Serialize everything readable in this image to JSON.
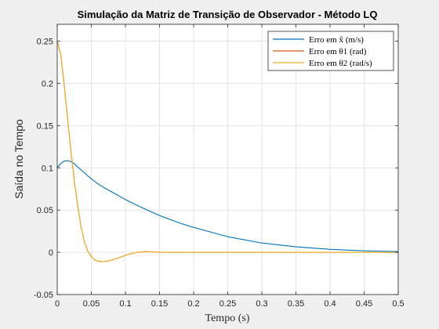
{
  "chart_data": {
    "type": "line",
    "title": "Simulação da Matriz de Transição de Observador - Método LQ",
    "xlabel": "Tempo (s)",
    "ylabel": "Saída no Tempo",
    "xlim": [
      0,
      0.5
    ],
    "ylim": [
      -0.05,
      0.27
    ],
    "xticks": [
      0,
      0.05,
      0.1,
      0.15,
      0.2,
      0.25,
      0.3,
      0.35,
      0.4,
      0.45,
      0.5
    ],
    "xtick_labels": [
      "0",
      "0.05",
      "0.1",
      "0.15",
      "0.2",
      "0.25",
      "0.3",
      "0.35",
      "0.4",
      "0.45",
      "0.5"
    ],
    "yticks": [
      -0.05,
      0,
      0.05,
      0.1,
      0.15,
      0.2,
      0.25
    ],
    "ytick_labels": [
      "-0.05",
      "0",
      "0.05",
      "0.1",
      "0.15",
      "0.2",
      "0.25"
    ],
    "grid": true,
    "legend_position": "top-right",
    "series": [
      {
        "name": "Erro em x̂ (m/s)",
        "color": "#0072BD",
        "x": [
          0,
          0.005,
          0.01,
          0.015,
          0.02,
          0.025,
          0.03,
          0.04,
          0.05,
          0.06,
          0.07,
          0.08,
          0.1,
          0.12,
          0.15,
          0.18,
          0.2,
          0.25,
          0.3,
          0.35,
          0.4,
          0.45,
          0.5
        ],
        "y": [
          0.1,
          0.105,
          0.108,
          0.1085,
          0.1075,
          0.105,
          0.101,
          0.094,
          0.087,
          0.081,
          0.076,
          0.0715,
          0.0625,
          0.0545,
          0.0435,
          0.0345,
          0.0295,
          0.0185,
          0.011,
          0.0065,
          0.0035,
          0.0018,
          0.0009
        ]
      },
      {
        "name": "Erro em θ1 (rad)",
        "color": "#D95319",
        "x": [
          0,
          0.005,
          0.01,
          0.015,
          0.02,
          0.025,
          0.03,
          0.035,
          0.04,
          0.045,
          0.05,
          0.055,
          0.06,
          0.065,
          0.07,
          0.075,
          0.08,
          0.09,
          0.1,
          0.11,
          0.12,
          0.13,
          0.14,
          0.15,
          0.2,
          0.3,
          0.4,
          0.5
        ],
        "y": [
          0.25,
          0.235,
          0.2,
          0.16,
          0.12,
          0.085,
          0.055,
          0.03,
          0.012,
          0.001,
          -0.005,
          -0.009,
          -0.0105,
          -0.011,
          -0.011,
          -0.0102,
          -0.0092,
          -0.0065,
          -0.0035,
          -0.0012,
          0.0002,
          0.0008,
          0.0005,
          0,
          0,
          0,
          0,
          0
        ]
      },
      {
        "name": "Erro em θ2 (rad/s)",
        "color": "#EDB120",
        "x": [
          0,
          0.005,
          0.01,
          0.015,
          0.02,
          0.025,
          0.03,
          0.035,
          0.04,
          0.045,
          0.05,
          0.055,
          0.06,
          0.065,
          0.07,
          0.075,
          0.08,
          0.09,
          0.1,
          0.11,
          0.12,
          0.13,
          0.14,
          0.15,
          0.2,
          0.3,
          0.4,
          0.5
        ],
        "y": [
          0.25,
          0.235,
          0.2,
          0.16,
          0.12,
          0.085,
          0.055,
          0.03,
          0.012,
          0.001,
          -0.005,
          -0.009,
          -0.0105,
          -0.011,
          -0.011,
          -0.0102,
          -0.0092,
          -0.0065,
          -0.0035,
          -0.0012,
          0.0002,
          0.0008,
          0.0005,
          0,
          0,
          0,
          0,
          0
        ]
      }
    ]
  }
}
